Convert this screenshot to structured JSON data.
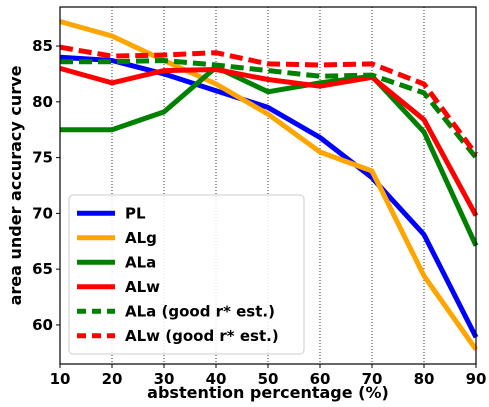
{
  "chart_data": {
    "type": "line",
    "xlabel": "abstention percentage (%)",
    "ylabel": "area under accuracy curve",
    "xlim": [
      10,
      90
    ],
    "ylim": [
      56.5,
      88.5
    ],
    "xticks": [
      10,
      20,
      30,
      40,
      50,
      60,
      70,
      80,
      90
    ],
    "yticks": [
      60,
      65,
      70,
      75,
      80,
      85
    ],
    "vertical_grid": true,
    "legend_position": "lower-left",
    "x": [
      10,
      20,
      30,
      40,
      50,
      60,
      70,
      80,
      90
    ],
    "series": [
      {
        "name": "PL",
        "color": "#0000ff",
        "style": "solid",
        "values": [
          84.0,
          83.7,
          82.5,
          81.0,
          79.5,
          76.8,
          73.2,
          68.1,
          58.9
        ]
      },
      {
        "name": "ALg",
        "color": "#ffa500",
        "style": "solid",
        "values": [
          87.2,
          85.9,
          83.7,
          81.6,
          78.9,
          75.5,
          73.8,
          64.4,
          57.8
        ]
      },
      {
        "name": "ALa",
        "color": "#008000",
        "style": "solid",
        "values": [
          77.5,
          77.5,
          79.1,
          83.1,
          80.9,
          81.7,
          82.3,
          77.3,
          67.1
        ]
      },
      {
        "name": "ALw",
        "color": "#ff0000",
        "style": "solid",
        "values": [
          83.0,
          81.7,
          82.8,
          82.9,
          82.0,
          81.4,
          82.2,
          78.4,
          69.8
        ]
      },
      {
        "name": "ALa (good r* est.)",
        "color": "#008000",
        "style": "dashed",
        "values": [
          83.6,
          83.6,
          83.7,
          83.3,
          82.8,
          82.3,
          82.4,
          80.8,
          75.0
        ]
      },
      {
        "name": "ALw (good r* est.)",
        "color": "#ff0000",
        "style": "dashed",
        "values": [
          84.9,
          84.1,
          84.2,
          84.4,
          83.4,
          83.3,
          83.4,
          81.6,
          75.3
        ]
      }
    ]
  }
}
